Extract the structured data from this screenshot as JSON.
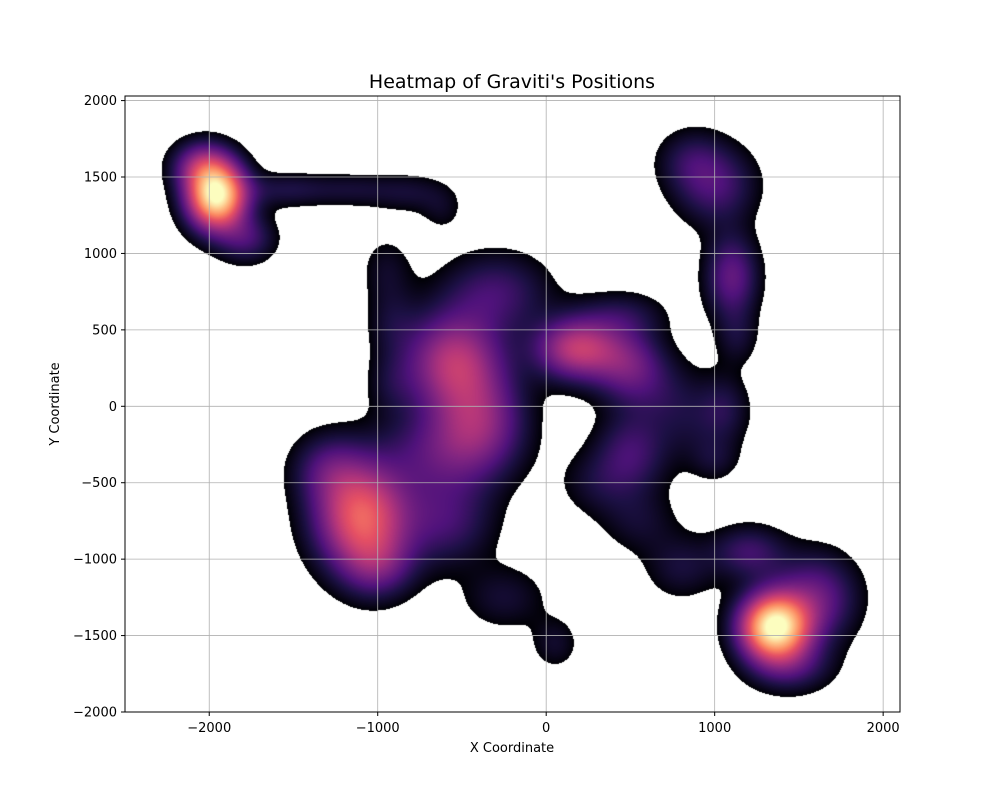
{
  "chart_data": {
    "type": "heatmap",
    "title": "Heatmap of Graviti's Positions",
    "xlabel": "X Coordinate",
    "ylabel": "Y Coordinate",
    "xlim": [
      -2500,
      2100
    ],
    "ylim": [
      -2000,
      2030
    ],
    "x_ticks": [
      -2000,
      -1000,
      0,
      1000,
      2000
    ],
    "x_tick_labels": [
      "−2000",
      "−1000",
      "0",
      "1000",
      "2000"
    ],
    "y_ticks": [
      2000,
      1500,
      1000,
      500,
      0,
      -500,
      -1000,
      -1500,
      -2000
    ],
    "y_tick_labels": [
      "2000",
      "1500",
      "1000",
      "500",
      "0",
      "−500",
      "−1000",
      "−1500",
      "−2000"
    ],
    "grid": true,
    "colormap": "magma",
    "threshold": 0.055,
    "density_peaks": [
      {
        "x": -1960,
        "y": 1380,
        "weight": 1.0,
        "sx": 120,
        "sy": 150
      },
      {
        "x": -2050,
        "y": 1580,
        "weight": 0.3,
        "sx": 120,
        "sy": 110
      },
      {
        "x": -1780,
        "y": 1100,
        "weight": 0.2,
        "sx": 120,
        "sy": 110
      },
      {
        "x": -1550,
        "y": 1420,
        "weight": 0.13,
        "sx": 180,
        "sy": 80
      },
      {
        "x": -1150,
        "y": 1420,
        "weight": 0.1,
        "sx": 180,
        "sy": 80
      },
      {
        "x": -800,
        "y": 1400,
        "weight": 0.1,
        "sx": 160,
        "sy": 90
      },
      {
        "x": -620,
        "y": 1280,
        "weight": 0.07,
        "sx": 90,
        "sy": 100
      },
      {
        "x": -950,
        "y": 900,
        "weight": 0.09,
        "sx": 110,
        "sy": 160
      },
      {
        "x": -920,
        "y": 550,
        "weight": 0.09,
        "sx": 110,
        "sy": 160
      },
      {
        "x": -920,
        "y": 150,
        "weight": 0.08,
        "sx": 110,
        "sy": 140
      },
      {
        "x": -550,
        "y": 300,
        "weight": 0.45,
        "sx": 200,
        "sy": 220
      },
      {
        "x": -400,
        "y": -100,
        "weight": 0.32,
        "sx": 190,
        "sy": 230
      },
      {
        "x": -300,
        "y": 750,
        "weight": 0.2,
        "sx": 220,
        "sy": 180
      },
      {
        "x": -650,
        "y": -300,
        "weight": 0.2,
        "sx": 250,
        "sy": 200
      },
      {
        "x": 180,
        "y": 380,
        "weight": 0.48,
        "sx": 170,
        "sy": 140
      },
      {
        "x": 480,
        "y": 280,
        "weight": 0.26,
        "sx": 150,
        "sy": 160
      },
      {
        "x": 450,
        "y": 600,
        "weight": 0.13,
        "sx": 180,
        "sy": 110
      },
      {
        "x": 650,
        "y": 100,
        "weight": 0.1,
        "sx": 170,
        "sy": 170
      },
      {
        "x": 900,
        "y": -100,
        "weight": 0.1,
        "sx": 180,
        "sy": 200
      },
      {
        "x": 500,
        "y": -300,
        "weight": 0.2,
        "sx": 150,
        "sy": 180
      },
      {
        "x": -1100,
        "y": -720,
        "weight": 0.62,
        "sx": 190,
        "sy": 240
      },
      {
        "x": -1300,
        "y": -400,
        "weight": 0.18,
        "sx": 150,
        "sy": 160
      },
      {
        "x": -1000,
        "y": -1050,
        "weight": 0.2,
        "sx": 150,
        "sy": 150
      },
      {
        "x": -600,
        "y": -750,
        "weight": 0.2,
        "sx": 200,
        "sy": 200
      },
      {
        "x": -250,
        "y": -1250,
        "weight": 0.11,
        "sx": 180,
        "sy": 150
      },
      {
        "x": 50,
        "y": -1550,
        "weight": 0.1,
        "sx": 100,
        "sy": 120
      },
      {
        "x": 850,
        "y": 1620,
        "weight": 0.12,
        "sx": 140,
        "sy": 140
      },
      {
        "x": 1000,
        "y": 1450,
        "weight": 0.22,
        "sx": 170,
        "sy": 180
      },
      {
        "x": 1100,
        "y": 850,
        "weight": 0.28,
        "sx": 110,
        "sy": 190
      },
      {
        "x": 1130,
        "y": 450,
        "weight": 0.1,
        "sx": 90,
        "sy": 130
      },
      {
        "x": 1060,
        "y": 0,
        "weight": 0.1,
        "sx": 100,
        "sy": 150
      },
      {
        "x": 1000,
        "y": -350,
        "weight": 0.08,
        "sx": 100,
        "sy": 100
      },
      {
        "x": 1350,
        "y": -1440,
        "weight": 1.0,
        "sx": 140,
        "sy": 150
      },
      {
        "x": 1600,
        "y": -1250,
        "weight": 0.28,
        "sx": 170,
        "sy": 200
      },
      {
        "x": 1450,
        "y": -1700,
        "weight": 0.18,
        "sx": 170,
        "sy": 120
      },
      {
        "x": 1200,
        "y": -950,
        "weight": 0.2,
        "sx": 150,
        "sy": 120
      },
      {
        "x": 800,
        "y": -1050,
        "weight": 0.12,
        "sx": 150,
        "sy": 150
      },
      {
        "x": 550,
        "y": -750,
        "weight": 0.1,
        "sx": 160,
        "sy": 150
      },
      {
        "x": 300,
        "y": -500,
        "weight": 0.1,
        "sx": 160,
        "sy": 150
      }
    ]
  }
}
